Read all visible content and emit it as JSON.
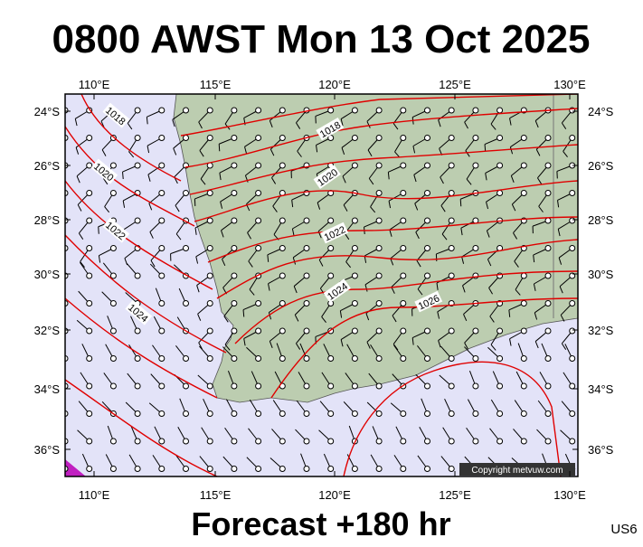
{
  "title": "0800 AWST Mon 13 Oct 2025",
  "footer": "Forecast +180 hr",
  "code": "US6",
  "copyright": "Copyright metvuw.com",
  "lon_labels": [
    "110°E",
    "115°E",
    "120°E",
    "125°E",
    "130°E"
  ],
  "lat_labels": [
    "24°S",
    "26°S",
    "28°S",
    "30°S",
    "32°S",
    "34°S",
    "36°S"
  ],
  "isobar_labels": [
    "1018",
    "1020",
    "1022",
    "1024",
    "1018",
    "1020",
    "1022",
    "1024",
    "1026"
  ]
}
